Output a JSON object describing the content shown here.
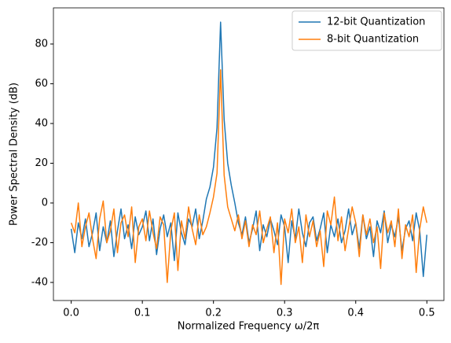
{
  "chart_data": {
    "type": "line",
    "xlabel": "Normalized Frequency ω/2π",
    "ylabel": "Power Spectral Density (dB)",
    "x": [
      0,
      0.005,
      0.01,
      0.015,
      0.02,
      0.025,
      0.03,
      0.035,
      0.04,
      0.045,
      0.05,
      0.055,
      0.06,
      0.065,
      0.07,
      0.075,
      0.08,
      0.085,
      0.09,
      0.095,
      0.1,
      0.105,
      0.11,
      0.115,
      0.12,
      0.125,
      0.13,
      0.135,
      0.14,
      0.145,
      0.15,
      0.155,
      0.16,
      0.165,
      0.17,
      0.175,
      0.18,
      0.185,
      0.19,
      0.195,
      0.2,
      0.205,
      0.21,
      0.215,
      0.22,
      0.225,
      0.23,
      0.235,
      0.24,
      0.245,
      0.25,
      0.255,
      0.26,
      0.265,
      0.27,
      0.275,
      0.28,
      0.285,
      0.29,
      0.295,
      0.3,
      0.305,
      0.31,
      0.315,
      0.32,
      0.325,
      0.33,
      0.335,
      0.34,
      0.345,
      0.35,
      0.355,
      0.36,
      0.365,
      0.37,
      0.375,
      0.38,
      0.385,
      0.39,
      0.395,
      0.4,
      0.405,
      0.41,
      0.415,
      0.42,
      0.425,
      0.43,
      0.435,
      0.44,
      0.445,
      0.45,
      0.455,
      0.46,
      0.465,
      0.47,
      0.475,
      0.48,
      0.485,
      0.49,
      0.495,
      0.5
    ],
    "series": [
      {
        "name": "12-bit Quantization",
        "color": "#1f77b4",
        "values": [
          -13,
          -25,
          -10,
          -18,
          -8,
          -22,
          -15,
          -5,
          -24,
          -12,
          -20,
          -9,
          -27,
          -14,
          -3,
          -18,
          -11,
          -23,
          -7,
          -16,
          -12,
          -4,
          -19,
          -8,
          -26,
          -13,
          -6,
          -17,
          -10,
          -29,
          -5,
          -15,
          -21,
          -8,
          -12,
          -3,
          -18,
          -9,
          2,
          8,
          18,
          38,
          91,
          42,
          20,
          9,
          0,
          -10,
          -16,
          -7,
          -20,
          -13,
          -4,
          -24,
          -11,
          -17,
          -8,
          -14,
          -21,
          -6,
          -12,
          -30,
          -9,
          -18,
          -3,
          -15,
          -22,
          -10,
          -7,
          -19,
          -13,
          -5,
          -25,
          -11,
          -17,
          -8,
          -20,
          -14,
          -3,
          -16,
          -10,
          -23,
          -6,
          -18,
          -12,
          -27,
          -9,
          -15,
          -4,
          -20,
          -11,
          -17,
          -7,
          -24,
          -13,
          -9,
          -19,
          -5,
          -14,
          -37,
          -16
        ]
      },
      {
        "name": "8-bit Quantization",
        "color": "#ff7f0e",
        "values": [
          -10,
          -15,
          0,
          -22,
          -12,
          -5,
          -18,
          -28,
          -8,
          1,
          -20,
          -14,
          -3,
          -25,
          -10,
          -6,
          -17,
          -2,
          -30,
          -12,
          -8,
          -19,
          -4,
          -15,
          -23,
          -7,
          -11,
          -40,
          -14,
          -5,
          -34,
          -9,
          -18,
          -2,
          -13,
          -21,
          -6,
          -16,
          -12,
          -5,
          3,
          15,
          67,
          14,
          -2,
          -8,
          -14,
          -6,
          -18,
          -9,
          -22,
          -11,
          -16,
          -4,
          -20,
          -13,
          -7,
          -25,
          -10,
          -41,
          -8,
          -15,
          -3,
          -20,
          -12,
          -30,
          -6,
          -17,
          -9,
          -22,
          -14,
          -32,
          -4,
          -11,
          3,
          -19,
          -7,
          -24,
          -13,
          -2,
          -10,
          -27,
          -6,
          -16,
          -8,
          -20,
          -12,
          -33,
          -5,
          -15,
          -9,
          -22,
          -3,
          -28,
          -11,
          -17,
          -6,
          -35,
          -13,
          -2,
          -10
        ]
      }
    ],
    "xlim": [
      -0.025,
      0.524
    ],
    "ylim": [
      -49.1,
      98.2
    ],
    "xticks": [
      {
        "value": 0,
        "label": "0.0"
      },
      0.1,
      0.2,
      0.3,
      0.4,
      0.5
    ],
    "yticks": [
      -40,
      -20,
      0,
      20,
      40,
      60,
      80
    ],
    "legend": "upper right"
  }
}
